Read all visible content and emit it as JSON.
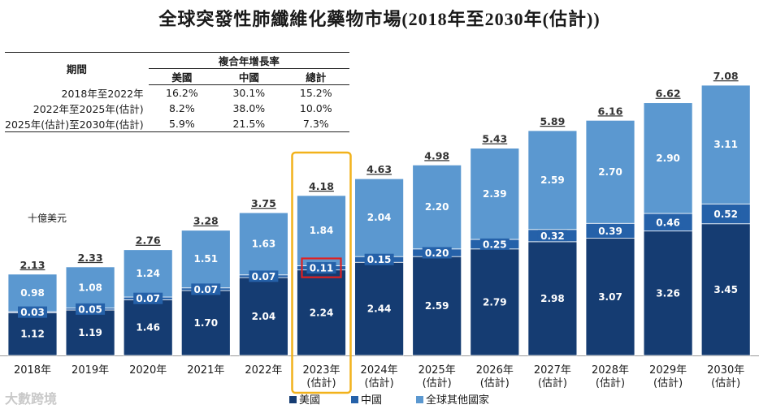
{
  "watermark": "大數跨境",
  "chart_data": {
    "type": "bar",
    "stacked": true,
    "title": "全球突發性肺纖維化藥物市場(2018年至2030年(估計))",
    "ylabel": "十億美元",
    "categories": [
      "2018年",
      "2019年",
      "2020年",
      "2021年",
      "2022年",
      "2023年",
      "2024年",
      "2025年",
      "2026年",
      "2027年",
      "2028年",
      "2029年",
      "2030年"
    ],
    "category_sub": [
      "",
      "",
      "",
      "",
      "",
      "(估計)",
      "(估計)",
      "(估計)",
      "(估計)",
      "(估計)",
      "(估計)",
      "(估計)",
      "(估計)"
    ],
    "series": [
      {
        "name": "美國",
        "color": "#153c72",
        "values": [
          1.12,
          1.19,
          1.46,
          1.7,
          2.04,
          2.24,
          2.44,
          2.59,
          2.79,
          2.98,
          3.07,
          3.26,
          3.45
        ]
      },
      {
        "name": "中國",
        "color": "#2561a9",
        "values": [
          0.03,
          0.05,
          0.07,
          0.07,
          0.07,
          0.11,
          0.15,
          0.2,
          0.25,
          0.32,
          0.39,
          0.46,
          0.52
        ]
      },
      {
        "name": "全球其他國家",
        "color": "#5b98d0",
        "values": [
          0.98,
          1.08,
          1.24,
          1.51,
          1.63,
          1.84,
          2.04,
          2.2,
          2.39,
          2.59,
          2.7,
          2.9,
          3.11
        ]
      }
    ],
    "totals": [
      2.13,
      2.33,
      2.76,
      3.28,
      3.75,
      4.18,
      4.63,
      4.98,
      5.43,
      5.89,
      6.16,
      6.62,
      7.08
    ],
    "ylim": [
      0,
      7.6
    ],
    "highlight_category": "2023年",
    "highlight_segment": "中國",
    "legend_position": "bottom"
  },
  "cagr_table": {
    "header_group": "複合年增長率",
    "period_label": "期間",
    "columns": [
      "美國",
      "中國",
      "總計"
    ],
    "rows": [
      {
        "period": "2018年至2022年",
        "values": [
          "16.2%",
          "30.1%",
          "15.2%"
        ]
      },
      {
        "period": "2022年至2025年(估計)",
        "values": [
          "8.2%",
          "38.0%",
          "10.0%"
        ]
      },
      {
        "period": "2025年(估計)至2030年(估計)",
        "values": [
          "5.9%",
          "21.5%",
          "7.3%"
        ]
      }
    ]
  }
}
